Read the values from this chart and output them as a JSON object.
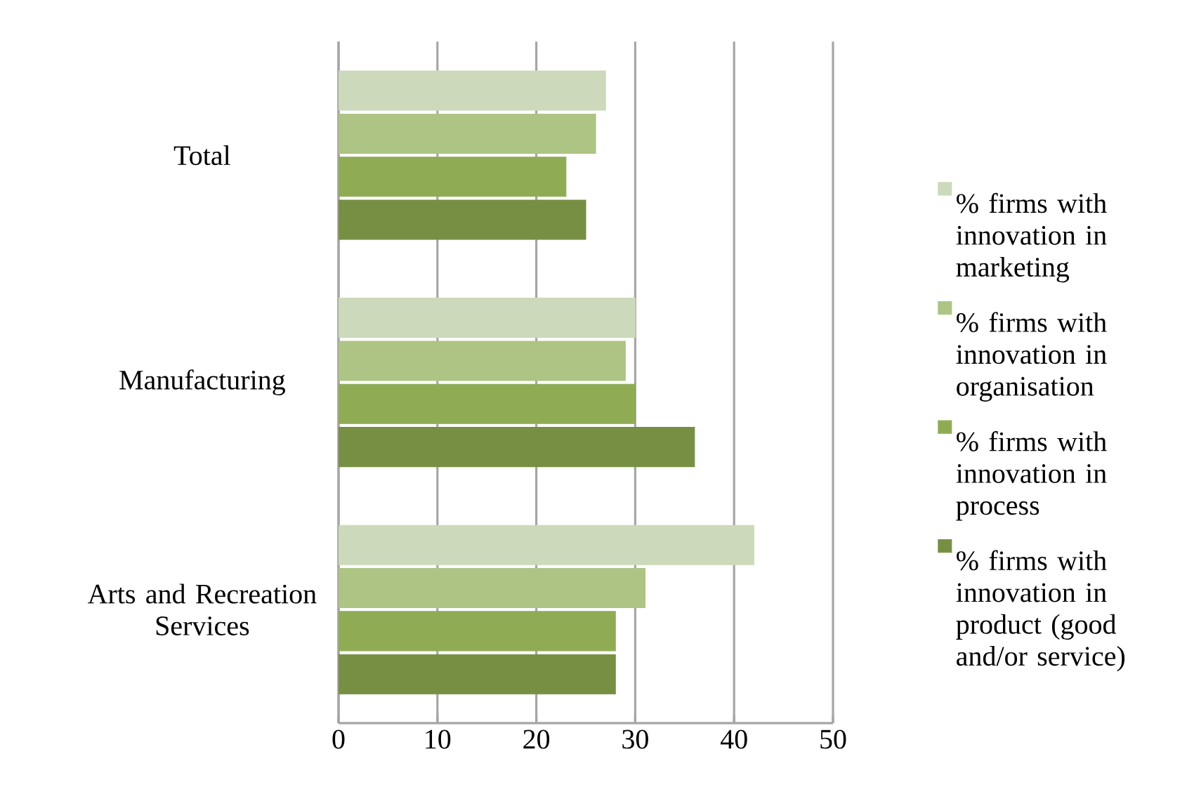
{
  "chart_data": {
    "type": "bar",
    "orientation": "horizontal",
    "categories": [
      "Total",
      "Manufacturing",
      "Arts and Recreation Services"
    ],
    "series": [
      {
        "name": "% firms with innovation in marketing",
        "color": "#ccd9bb",
        "values": [
          27,
          30,
          42
        ]
      },
      {
        "name": "% firms with innovation in organisation",
        "color": "#adc484",
        "values": [
          26,
          29,
          31
        ]
      },
      {
        "name": "% firms with innovation in process",
        "color": "#8fac55",
        "values": [
          23,
          30,
          28
        ]
      },
      {
        "name": "% firms with innovation in product (good and/or service)",
        "color": "#778f43",
        "values": [
          25,
          36,
          28
        ]
      }
    ],
    "xlim": [
      0,
      50
    ],
    "xticks": [
      0,
      10,
      20,
      30,
      40,
      50
    ],
    "grid": "x",
    "legend": "right"
  }
}
